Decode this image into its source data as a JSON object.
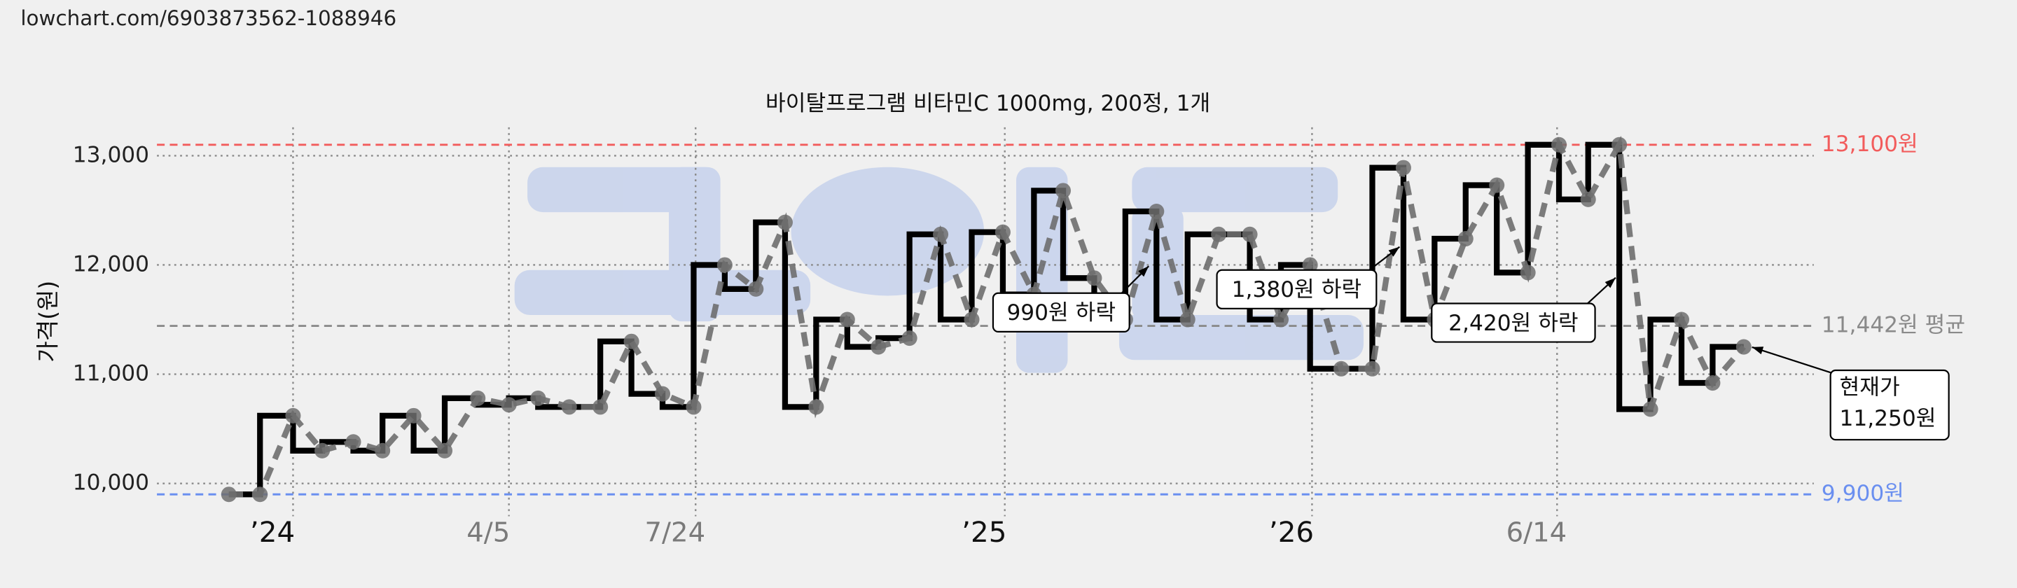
{
  "header_url": "lowchart.com/6903873562-1088946",
  "chart_data": {
    "type": "step",
    "title": "바이탈프로그램 비타민C 1000mg, 200정, 1개",
    "ylabel": "가격(원)",
    "x": [
      -33,
      -17,
      0,
      15,
      31,
      46,
      62,
      78,
      95,
      111,
      126,
      142,
      158,
      174,
      190,
      206,
      222,
      238,
      253,
      269,
      285,
      301,
      317,
      333,
      349,
      365,
      381,
      396,
      412,
      428,
      444,
      460,
      476,
      492,
      508,
      523,
      539,
      555,
      571,
      587,
      603,
      619,
      635,
      651,
      666,
      682,
      698,
      714,
      730,
      746
    ],
    "values": [
      9900,
      9900,
      10620,
      10300,
      10380,
      10300,
      10620,
      10300,
      10780,
      10720,
      10780,
      10700,
      10700,
      11300,
      10820,
      10700,
      12000,
      11780,
      12390,
      10700,
      11500,
      11250,
      11330,
      12280,
      11500,
      12300,
      11730,
      12680,
      11880,
      11500,
      12490,
      11500,
      12280,
      12280,
      11500,
      12000,
      11050,
      11050,
      12890,
      11500,
      12240,
      12730,
      11930,
      13100,
      12600,
      13100,
      10680,
      11500,
      10920,
      11250
    ],
    "color": "#000000",
    "point_color": "#6e6e6e",
    "xlim": [
      -70,
      782
    ],
    "xticks": [
      {
        "value": 0,
        "label": "’24"
      },
      {
        "value": 111,
        "label": "4/5"
      },
      {
        "value": 207,
        "label": "7/24"
      },
      {
        "value": 366,
        "label": "’25"
      },
      {
        "value": 524,
        "label": "’26"
      },
      {
        "value": 650,
        "label": "6/14"
      }
    ],
    "ylim": [
      9700,
      13260
    ],
    "yticks": [
      {
        "value": 10000,
        "label": "10,000"
      },
      {
        "value": 11000,
        "label": "11,000"
      },
      {
        "value": 12000,
        "label": "12,000"
      },
      {
        "value": 13000,
        "label": "13,000"
      }
    ],
    "grid": true,
    "reference_lines": [
      {
        "value": 13100,
        "label": "13,100원",
        "color": "#f25c5c"
      },
      {
        "value": 11442,
        "label": "11,442원 평균",
        "color": "#8a8a8a"
      },
      {
        "value": 9900,
        "label": "9,900원",
        "color": "#6a8ff0"
      }
    ],
    "annotations": [
      "990원 하락",
      "1,380원 하락",
      "2,420원 하락"
    ],
    "current_price_label": [
      "현재가",
      "11,250원"
    ]
  }
}
